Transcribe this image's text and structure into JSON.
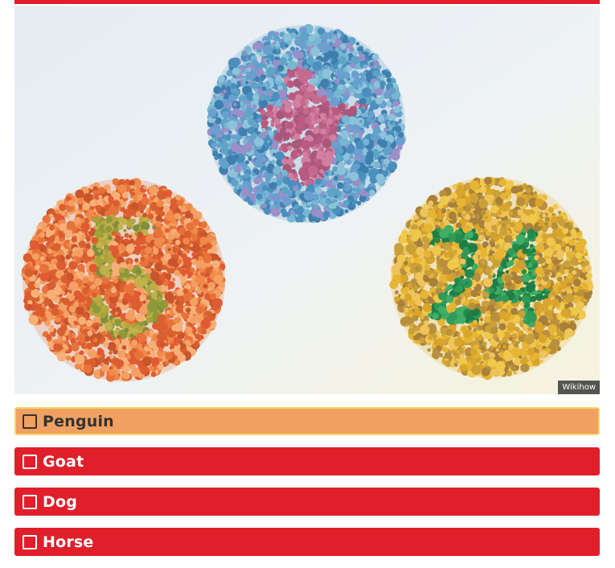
{
  "colors": {
    "accent_red": "#e01f2b",
    "selected_orange": "#f0a060",
    "selected_border": "#f5d66b"
  },
  "image": {
    "credit": "Wikihow",
    "plates": [
      {
        "name": "penguin-plate",
        "figure": "penguin"
      },
      {
        "name": "number-plate-5",
        "figure": "5"
      },
      {
        "name": "number-plate-24",
        "figure": "24"
      }
    ]
  },
  "answers": [
    {
      "label": "Penguin",
      "selected": true
    },
    {
      "label": "Goat",
      "selected": false
    },
    {
      "label": "Dog",
      "selected": false
    },
    {
      "label": "Horse",
      "selected": false
    }
  ]
}
